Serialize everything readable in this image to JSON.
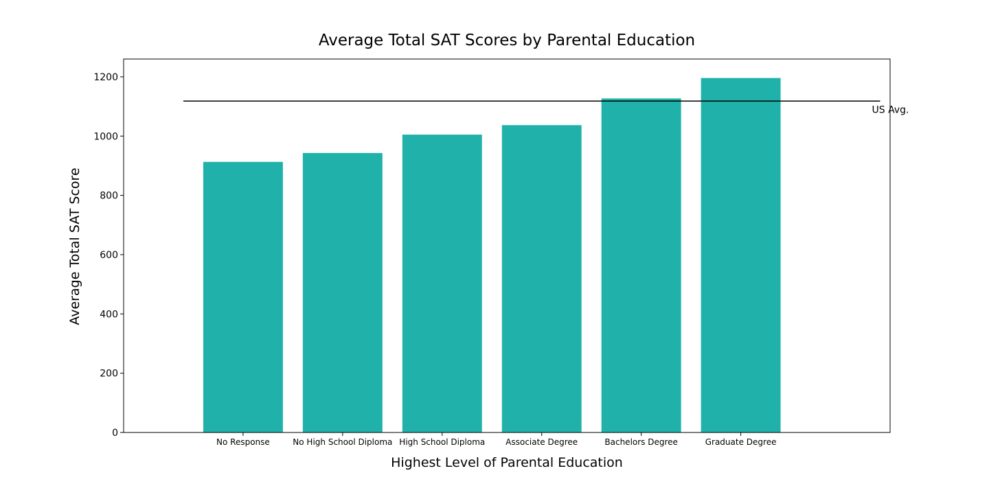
{
  "chart_data": {
    "type": "bar",
    "title": "Average Total SAT Scores by Parental Education",
    "xlabel": "Highest Level of Parental Education",
    "ylabel": "Average Total SAT Score",
    "categories": [
      "No Response",
      "No High School Diploma",
      "High School Diploma",
      "Associate Degree",
      "Bachelors Degree",
      "Graduate Degree"
    ],
    "values": [
      913,
      943,
      1005,
      1037,
      1127,
      1196
    ],
    "ylim": [
      0,
      1260
    ],
    "yticks": [
      0,
      200,
      400,
      600,
      800,
      1000,
      1200
    ],
    "bar_color": "#20b2aa",
    "grid": false,
    "reference_line": {
      "label": "US Avg.",
      "value": 1118,
      "color": "#000000"
    }
  }
}
